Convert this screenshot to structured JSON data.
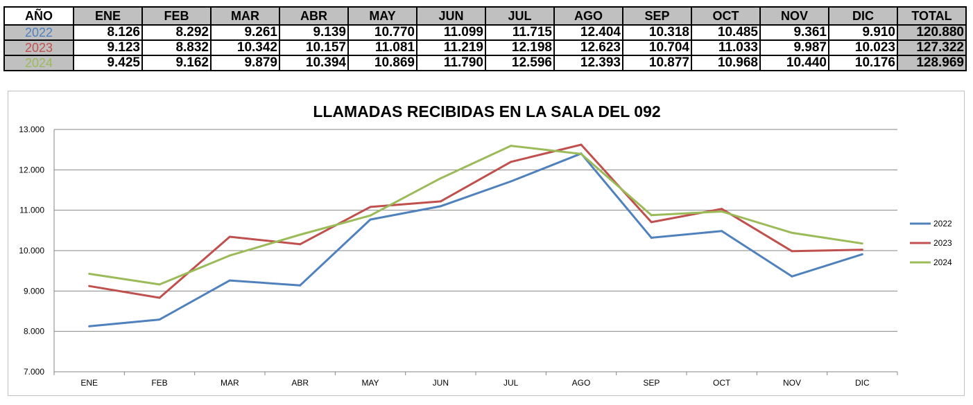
{
  "table": {
    "year_header": "AÑO",
    "months": [
      "ENE",
      "FEB",
      "MAR",
      "ABR",
      "MAY",
      "JUN",
      "JUL",
      "AGO",
      "SEP",
      "OCT",
      "NOV",
      "DIC"
    ],
    "total_header": "TOTAL",
    "rows": [
      {
        "year": "2022",
        "color": "#4f81bd",
        "values": [
          "8.126",
          "8.292",
          "9.261",
          "9.139",
          "10.770",
          "11.099",
          "11.715",
          "12.404",
          "10.318",
          "10.485",
          "9.361",
          "9.910"
        ],
        "total": "120.880"
      },
      {
        "year": "2023",
        "color": "#c0504d",
        "values": [
          "9.123",
          "8.832",
          "10.342",
          "10.157",
          "11.081",
          "11.219",
          "12.198",
          "12.623",
          "10.704",
          "11.033",
          "9.987",
          "10.023"
        ],
        "total": "127.322"
      },
      {
        "year": "2024",
        "color": "#9bbb59",
        "values": [
          "9.425",
          "9.162",
          "9.879",
          "10.394",
          "10.869",
          "11.790",
          "12.596",
          "12.393",
          "10.877",
          "10.968",
          "10.440",
          "10.176"
        ],
        "total": "128.969"
      }
    ]
  },
  "chart_data": {
    "type": "line",
    "title": "LLAMADAS RECIBIDAS EN LA SALA DEL 092",
    "categories": [
      "ENE",
      "FEB",
      "MAR",
      "ABR",
      "MAY",
      "JUN",
      "JUL",
      "AGO",
      "SEP",
      "OCT",
      "NOV",
      "DIC"
    ],
    "series": [
      {
        "name": "2022",
        "color": "#4f81bd",
        "values": [
          8126,
          8292,
          9261,
          9139,
          10770,
          11099,
          11715,
          12404,
          10318,
          10485,
          9361,
          9910
        ]
      },
      {
        "name": "2023",
        "color": "#c0504d",
        "values": [
          9123,
          8832,
          10342,
          10157,
          11081,
          11219,
          12198,
          12623,
          10704,
          11033,
          9987,
          10023
        ]
      },
      {
        "name": "2024",
        "color": "#9bbb59",
        "values": [
          9425,
          9162,
          9879,
          10394,
          10869,
          11790,
          12596,
          12393,
          10877,
          10968,
          10440,
          10176
        ]
      }
    ],
    "ylim": [
      7000,
      13000
    ],
    "y_ticks": [
      "7.000",
      "8.000",
      "9.000",
      "10.000",
      "11.000",
      "12.000",
      "13.000"
    ],
    "grid": true,
    "legend_position": "right"
  }
}
